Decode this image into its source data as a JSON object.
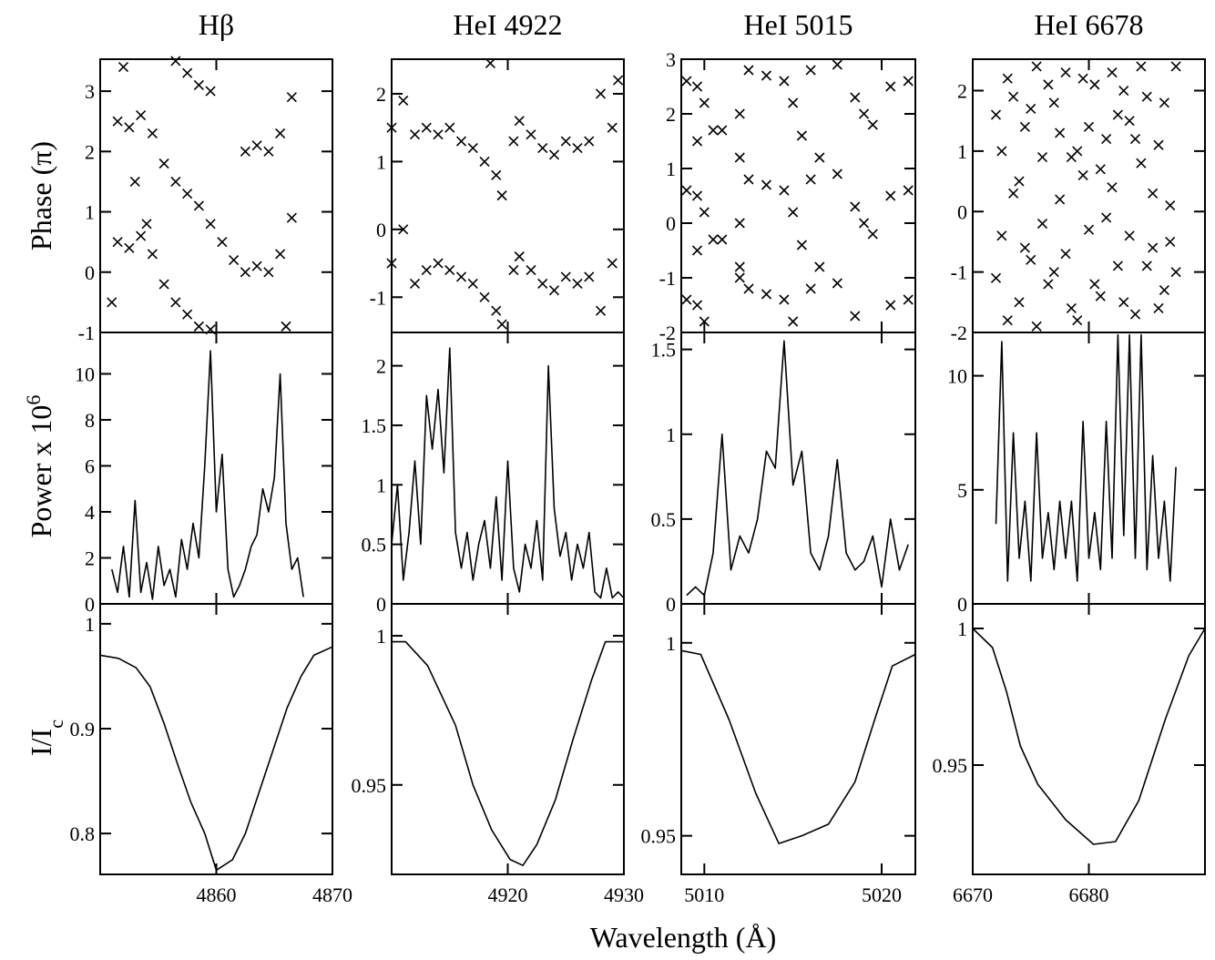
{
  "xlabel": "Wavelength (Å)",
  "chart_data": [
    {
      "type": "scatter",
      "title": "Hβ",
      "ylabel": "Phase (π)",
      "xlim": [
        4850,
        4870
      ],
      "ylim": [
        -1,
        3.53
      ],
      "yticks": [
        -1,
        0,
        1,
        2,
        3
      ],
      "x": [
        4851.5,
        4852.5,
        4853.5,
        4854.5,
        4855.5,
        4856.5,
        4857.5,
        4858.5,
        4859.5,
        4860.5,
        4861.5,
        4862.5,
        4863.5,
        4864.5,
        4865.5,
        4866.5,
        4851.5,
        4852.5,
        4853.5,
        4854.5,
        4855.5,
        4856.5,
        4857.5,
        4858.5,
        4859.5,
        4862.5,
        4863.5,
        4864.5,
        4865.5,
        4866.5,
        4852,
        4856.5,
        4857.5,
        4858.5,
        4859.5,
        4851,
        4853,
        4854,
        4866
      ],
      "values": [
        2.5,
        2.4,
        2.6,
        2.3,
        1.8,
        1.5,
        1.3,
        1.1,
        0.8,
        0.5,
        0.2,
        2.0,
        2.1,
        2.0,
        2.3,
        2.9,
        0.5,
        0.4,
        0.6,
        0.3,
        -0.2,
        -0.5,
        -0.7,
        -0.9,
        -0.95,
        0.0,
        0.1,
        0.0,
        0.3,
        0.9,
        3.4,
        3.5,
        3.3,
        3.1,
        3.0,
        -0.5,
        1.5,
        0.8,
        -0.9
      ]
    },
    {
      "type": "scatter",
      "title": "HeI 4922",
      "xlim": [
        4910,
        4930
      ],
      "ylim": [
        -1.52,
        2.51
      ],
      "yticks": [
        -1,
        0,
        1,
        2
      ],
      "x": [
        4910,
        4911,
        4912,
        4913,
        4914,
        4915,
        4916,
        4917,
        4918,
        4919,
        4919.5,
        4920.5,
        4921,
        4922,
        4923,
        4924,
        4925,
        4926,
        4927,
        4928,
        4929,
        4910,
        4911,
        4912,
        4913,
        4914,
        4915,
        4916,
        4917,
        4918,
        4919,
        4919.5,
        4920.5,
        4921,
        4922,
        4923,
        4924,
        4925,
        4926,
        4927,
        4928,
        4929,
        4929.5,
        4918.5
      ],
      "values": [
        1.5,
        1.9,
        1.4,
        1.5,
        1.4,
        1.5,
        1.3,
        1.2,
        1.0,
        0.8,
        0.5,
        1.3,
        1.6,
        1.4,
        1.2,
        1.1,
        1.3,
        1.2,
        1.3,
        2.0,
        1.5,
        -0.5,
        0.0,
        -0.8,
        -0.6,
        -0.5,
        -0.6,
        -0.7,
        -0.8,
        -1.0,
        -1.2,
        -1.4,
        -0.6,
        -0.4,
        -0.6,
        -0.8,
        -0.9,
        -0.7,
        -0.8,
        -0.7,
        -1.2,
        -0.5,
        2.2,
        2.45
      ]
    },
    {
      "type": "scatter",
      "title": "HeI 5015",
      "xlim": [
        5008.7,
        5021.9
      ],
      "ylim": [
        -2,
        3
      ],
      "yticks": [
        -2,
        -1,
        0,
        1,
        2,
        3
      ],
      "x": [
        5009,
        5010,
        5010.5,
        5011,
        5012,
        5012.5,
        5013.5,
        5014.5,
        5015,
        5015.5,
        5016,
        5016.5,
        5017.5,
        5018.5,
        5019,
        5019.5,
        5020.5,
        5021.5,
        5009,
        5010,
        5010.5,
        5012.5,
        5013.5,
        5014.5,
        5015,
        5015.5,
        5016,
        5017.5,
        5018.5,
        5019,
        5019.5,
        5020.5,
        5021.5,
        5009,
        5010,
        5011,
        5012,
        5012.5,
        5013.5,
        5014.5,
        5015,
        5016,
        5016.5,
        5017.5,
        5018.5,
        5020.5,
        5021.5,
        5009.6,
        5009.6,
        5009.6,
        5009.6,
        5009.6,
        5012,
        5012,
        5012
      ],
      "values": [
        0.6,
        0.2,
        -0.3,
        1.7,
        1.2,
        0.8,
        0.7,
        0.6,
        0.2,
        -0.4,
        0.8,
        1.2,
        0.9,
        0.3,
        0.0,
        -0.2,
        0.5,
        0.6,
        2.6,
        2.2,
        1.7,
        2.8,
        2.7,
        2.6,
        2.2,
        1.6,
        2.8,
        2.9,
        2.3,
        2.0,
        1.8,
        2.5,
        2.6,
        -1.4,
        -1.8,
        -0.3,
        -0.8,
        -1.2,
        -1.3,
        -1.4,
        -1.8,
        -1.2,
        -0.8,
        -1.1,
        -1.7,
        -1.5,
        -1.4,
        -1.5,
        -0.5,
        0.5,
        1.5,
        2.5,
        -1.0,
        0.0,
        2.0
      ]
    },
    {
      "type": "scatter",
      "title": "HeI 6678",
      "xlim": [
        6670,
        6690
      ],
      "ylim": [
        -2,
        2.52
      ],
      "yticks": [
        -2,
        -1,
        0,
        1,
        2
      ],
      "x": [
        6672,
        6672.5,
        6673,
        6673.5,
        6674,
        6674.5,
        6675,
        6675.5,
        6676,
        6676.5,
        6677,
        6677.5,
        6678,
        6678.5,
        6679,
        6679.5,
        6680,
        6680.5,
        6681,
        6681.5,
        6682,
        6682.5,
        6683,
        6683.5,
        6684,
        6684.5,
        6685,
        6685.5,
        6686,
        6686.5,
        6687,
        6687.5,
        6672,
        6672.5,
        6673,
        6673.5,
        6674,
        6674.5,
        6675,
        6675.5,
        6676,
        6676.5,
        6677,
        6677.5,
        6678,
        6678.5,
        6679,
        6679.5,
        6680,
        6680.5,
        6681,
        6681.5,
        6682,
        6682.5,
        6683,
        6683.5,
        6684,
        6684.5,
        6685,
        6685.5,
        6686,
        6686.5,
        6687,
        6687.5
      ],
      "values": [
        1.6,
        -0.4,
        2.2,
        0.3,
        -1.5,
        1.4,
        -0.8,
        2.4,
        0.9,
        -1.2,
        1.8,
        0.2,
        2.3,
        -1.6,
        1.0,
        0.6,
        -0.3,
        2.1,
        -1.4,
        1.2,
        0.4,
        -0.9,
        2.0,
        1.5,
        -1.7,
        0.8,
        1.9,
        -0.6,
        1.1,
        -1.3,
        0.1,
        2.4,
        -1.1,
        1.0,
        -1.8,
        1.9,
        0.5,
        -0.6,
        1.7,
        -1.9,
        -0.2,
        2.1,
        -1.0,
        1.3,
        -0.7,
        0.9,
        -1.8,
        2.2,
        1.4,
        -1.2,
        0.7,
        -0.1,
        2.3,
        1.6,
        -1.5,
        -0.4,
        1.2,
        2.4,
        -0.9,
        0.3,
        -1.6,
        1.8,
        -0.5,
        -1.0
      ]
    },
    {
      "type": "line",
      "ylabel": "Power x 10",
      "ylabel_sup": "6",
      "xlim": [
        4850,
        4870
      ],
      "ylim": [
        0,
        11.8
      ],
      "yticks": [
        0,
        2,
        4,
        6,
        8,
        10
      ],
      "x": [
        4851,
        4851.5,
        4852,
        4852.5,
        4853,
        4853.5,
        4854,
        4854.5,
        4855,
        4855.5,
        4856,
        4856.5,
        4857,
        4857.5,
        4858,
        4858.5,
        4859,
        4859.5,
        4860,
        4860.5,
        4861,
        4861.5,
        4862,
        4862.5,
        4863,
        4863.5,
        4864,
        4864.5,
        4865,
        4865.5,
        4866,
        4866.5,
        4867,
        4867.5
      ],
      "values": [
        1.5,
        0.5,
        2.5,
        0.3,
        4.5,
        0.5,
        1.8,
        0.2,
        2.5,
        0.8,
        1.5,
        0.3,
        2.8,
        1.5,
        3.5,
        2,
        6,
        11,
        4,
        6.5,
        1.5,
        0.3,
        0.8,
        1.5,
        2.5,
        3,
        5,
        4,
        5.5,
        10,
        3.5,
        1.5,
        2,
        0.3
      ]
    },
    {
      "type": "line",
      "xlim": [
        4910,
        4930
      ],
      "ylim": [
        0,
        2.28
      ],
      "yticks": [
        0,
        0.5,
        1,
        1.5,
        2
      ],
      "x": [
        4910,
        4910.5,
        4911,
        4911.5,
        4912,
        4912.5,
        4913,
        4913.5,
        4914,
        4914.5,
        4915,
        4915.5,
        4916,
        4916.5,
        4917,
        4917.5,
        4918,
        4918.5,
        4919,
        4919.5,
        4920,
        4920.5,
        4921,
        4921.5,
        4922,
        4922.5,
        4923,
        4923.5,
        4924,
        4924.5,
        4925,
        4925.5,
        4926,
        4926.5,
        4927,
        4927.5,
        4928,
        4928.5,
        4929,
        4929.5,
        4930
      ],
      "values": [
        0.5,
        1.0,
        0.2,
        0.6,
        1.2,
        0.5,
        1.75,
        1.3,
        1.8,
        1.1,
        2.15,
        0.6,
        0.3,
        0.6,
        0.2,
        0.5,
        0.7,
        0.3,
        0.9,
        0.2,
        1.2,
        0.3,
        0.1,
        0.5,
        0.3,
        0.7,
        0.2,
        2.0,
        0.8,
        0.4,
        0.6,
        0.2,
        0.5,
        0.3,
        0.6,
        0.1,
        0.05,
        0.3,
        0.05,
        0.1,
        0.05
      ]
    },
    {
      "type": "line",
      "xlim": [
        5008.7,
        5021.9
      ],
      "ylim": [
        0,
        1.6
      ],
      "yticks": [
        0,
        0.5,
        1,
        1.5
      ],
      "x": [
        5009,
        5009.5,
        5010,
        5010.5,
        5011,
        5011.5,
        5012,
        5012.5,
        5013,
        5013.5,
        5014,
        5014.5,
        5015,
        5015.5,
        5016,
        5016.5,
        5017,
        5017.5,
        5018,
        5018.5,
        5019,
        5019.5,
        5020,
        5020.5,
        5021,
        5021.5
      ],
      "values": [
        0.05,
        0.1,
        0.05,
        0.3,
        1.0,
        0.2,
        0.4,
        0.3,
        0.5,
        0.9,
        0.8,
        1.55,
        0.7,
        0.9,
        0.3,
        0.2,
        0.4,
        0.85,
        0.3,
        0.2,
        0.25,
        0.4,
        0.1,
        0.5,
        0.2,
        0.35
      ]
    },
    {
      "type": "line",
      "xlim": [
        6670,
        6690
      ],
      "ylim": [
        0,
        11.9
      ],
      "yticks": [
        0,
        5,
        10
      ],
      "x": [
        6672,
        6672.5,
        6673,
        6673.5,
        6674,
        6674.5,
        6675,
        6675.5,
        6676,
        6676.5,
        6677,
        6677.5,
        6678,
        6678.5,
        6679,
        6679.5,
        6680,
        6680.5,
        6681,
        6681.5,
        6682,
        6682.5,
        6683,
        6683.5,
        6684,
        6684.5,
        6685,
        6685.5,
        6686,
        6686.5,
        6687,
        6687.5
      ],
      "values": [
        3.5,
        11.5,
        1,
        7.5,
        2,
        4.5,
        1,
        7.5,
        2,
        4,
        1.5,
        4.5,
        2,
        4.5,
        1,
        8,
        2,
        4,
        1.5,
        8,
        2,
        11.8,
        3,
        11.8,
        2,
        11.8,
        1.5,
        6.5,
        2,
        4.5,
        1,
        6
      ]
    },
    {
      "type": "line",
      "ylabel": "I/I",
      "ylabel_sub": "c",
      "xlim": [
        4850,
        4870
      ],
      "ylim": [
        0.761,
        1.019
      ],
      "yticks": [
        0.8,
        0.9,
        1
      ],
      "xticks": [
        4860,
        4870
      ],
      "x": [
        4850,
        4851.6,
        4853.1,
        4854.3,
        4855.5,
        4856.7,
        4857.8,
        4859.0,
        4860.0,
        4861.4,
        4862.5,
        4863.7,
        4864.9,
        4866.1,
        4867.3,
        4868.4,
        4870
      ],
      "values": [
        0.97,
        0.967,
        0.958,
        0.94,
        0.905,
        0.865,
        0.83,
        0.8,
        0.765,
        0.775,
        0.8,
        0.84,
        0.88,
        0.92,
        0.95,
        0.97,
        0.978
      ]
    },
    {
      "type": "line",
      "xlim": [
        4910,
        4930
      ],
      "ylim": [
        0.92,
        1.0107
      ],
      "yticks": [
        0.95,
        1
      ],
      "xticks": [
        4920,
        4930
      ],
      "x": [
        4910,
        4911.2,
        4913.1,
        4915.5,
        4917.0,
        4918.6,
        4920.2,
        4921.3,
        4922.5,
        4924.1,
        4925.6,
        4927.2,
        4928.4,
        4930
      ],
      "values": [
        0.998,
        0.998,
        0.99,
        0.97,
        0.95,
        0.935,
        0.925,
        0.923,
        0.93,
        0.945,
        0.965,
        0.985,
        0.998,
        0.998
      ]
    },
    {
      "type": "line",
      "xlim": [
        5008.7,
        5021.9
      ],
      "ylim": [
        0.94,
        1.0101
      ],
      "yticks": [
        0.95,
        1
      ],
      "xticks": [
        5010,
        5020
      ],
      "x": [
        5008.7,
        5009.8,
        5011.4,
        5012.9,
        5014.2,
        5015.5,
        5017.0,
        5018.5,
        5019.6,
        5020.6,
        5021.9
      ],
      "values": [
        0.998,
        0.997,
        0.98,
        0.961,
        0.948,
        0.95,
        0.953,
        0.964,
        0.98,
        0.994,
        0.997
      ]
    },
    {
      "type": "line",
      "xlim": [
        6670,
        6690
      ],
      "ylim": [
        0.91,
        1.009
      ],
      "yticks": [
        0.95,
        1
      ],
      "xticks": [
        6670,
        6680
      ],
      "x": [
        6670,
        6671.7,
        6672.9,
        6674.1,
        6675.6,
        6678.0,
        6680.4,
        6682.3,
        6684.3,
        6686.6,
        6688.6,
        6690
      ],
      "values": [
        1.0,
        0.993,
        0.977,
        0.957,
        0.943,
        0.93,
        0.921,
        0.922,
        0.937,
        0.967,
        0.99,
        1.0
      ]
    }
  ]
}
